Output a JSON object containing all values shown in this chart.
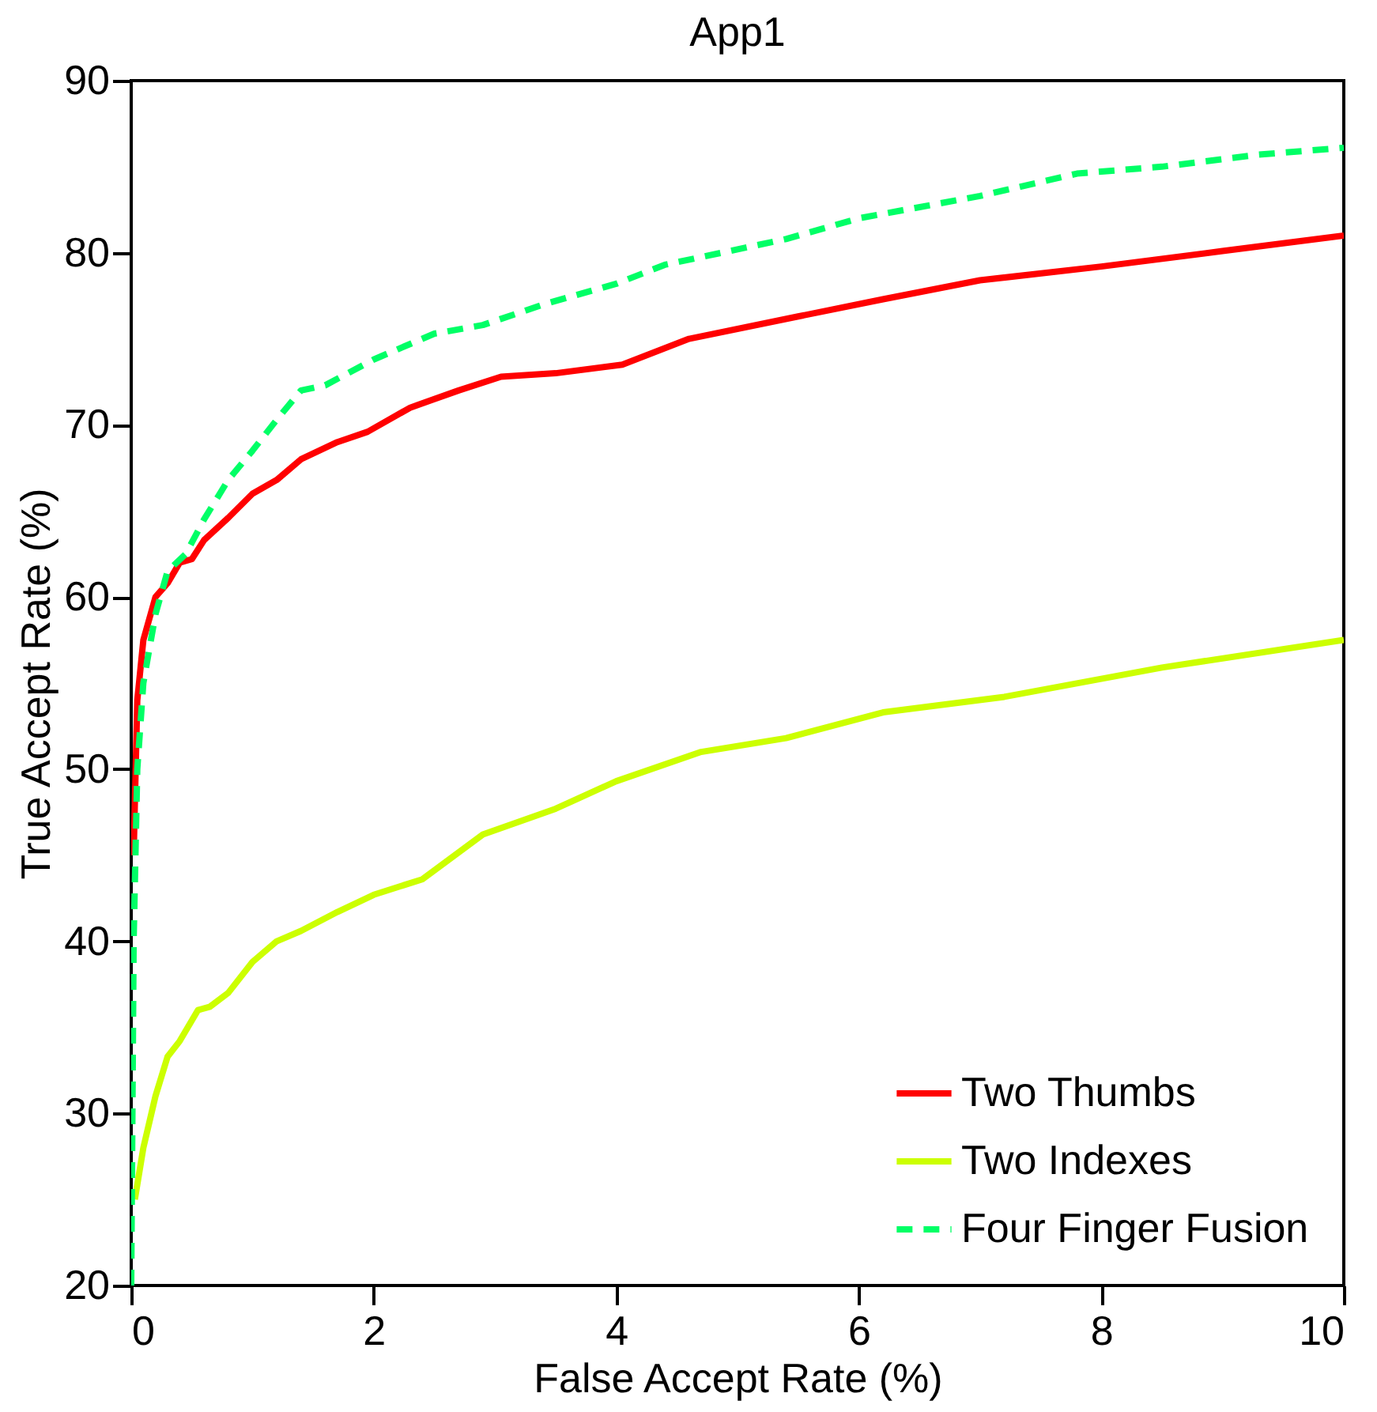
{
  "chart_data": {
    "type": "line",
    "title": "App1",
    "xlabel": "False Accept Rate (%)",
    "ylabel": "True Accept Rate (%)",
    "xlim": [
      0,
      10
    ],
    "xticks": [
      0,
      2,
      4,
      6,
      8,
      10
    ],
    "ylim": [
      20,
      90
    ],
    "yticks": [
      20,
      30,
      40,
      50,
      60,
      70,
      80,
      90
    ],
    "grid": false,
    "legend": "bottom right",
    "marker": "none",
    "series": [
      {
        "name": "Two Thumbs",
        "color": "#ff0000",
        "line_style": "solid",
        "x": [
          0.02,
          0.05,
          0.1,
          0.2,
          0.3,
          0.4,
          0.5,
          0.6,
          0.8,
          1.0,
          1.2,
          1.4,
          1.7,
          1.95,
          2.3,
          2.7,
          3.05,
          3.5,
          4.05,
          4.6,
          5.5,
          6.2,
          7.0,
          8,
          9,
          10
        ],
        "values": [
          45,
          54,
          57.5,
          60,
          60.8,
          62,
          62.2,
          63.3,
          64.6,
          66,
          66.8,
          68,
          69,
          69.6,
          71,
          72,
          72.8,
          73,
          73.5,
          75,
          76.3,
          77.3,
          78.4,
          79.2,
          80.1,
          81
        ]
      },
      {
        "name": "Two Indexes",
        "color": "#ccff00",
        "line_style": "solid",
        "x": [
          0.03,
          0.1,
          0.2,
          0.3,
          0.4,
          0.55,
          0.65,
          0.8,
          1.0,
          1.2,
          1.4,
          1.7,
          2.0,
          2.4,
          2.9,
          3.5,
          4.0,
          4.7,
          5.4,
          6.2,
          7.2,
          8.5,
          10
        ],
        "values": [
          25,
          28,
          31,
          33.3,
          34.2,
          36,
          36.2,
          37,
          38.8,
          40,
          40.6,
          41.7,
          42.7,
          43.6,
          46.2,
          47.7,
          49.3,
          51,
          51.8,
          53.3,
          54.2,
          55.9,
          57.5
        ]
      },
      {
        "name": "Four Finger Fusion",
        "color": "#00ff66",
        "line_style": "dashed",
        "x": [
          0,
          0.02,
          0.05,
          0.1,
          0.2,
          0.3,
          0.45,
          0.6,
          0.8,
          1.0,
          1.2,
          1.4,
          1.6,
          2.0,
          2.5,
          2.9,
          3.4,
          4.0,
          4.4,
          5.4,
          6,
          7,
          7.8,
          8.5,
          9.3,
          10
        ],
        "values": [
          20,
          40,
          50,
          55,
          59,
          61.5,
          62.5,
          64.5,
          66.8,
          68.5,
          70.3,
          72,
          72.3,
          73.8,
          75.3,
          75.8,
          77,
          78.2,
          79.3,
          80.8,
          82,
          83.3,
          84.6,
          85,
          85.7,
          86.1
        ]
      }
    ]
  }
}
